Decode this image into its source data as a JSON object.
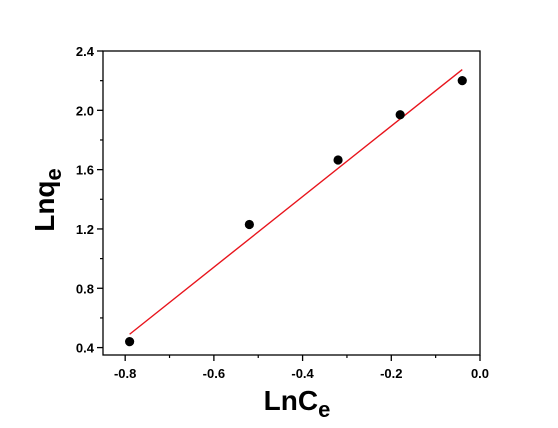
{
  "chart_data": {
    "type": "scatter",
    "title": "",
    "xlabel": {
      "base": "LnC",
      "subscript": "e"
    },
    "ylabel": {
      "base": "Lnq",
      "subscript": "e"
    },
    "xlim": [
      -0.85,
      0.0
    ],
    "ylim": [
      0.35,
      2.4
    ],
    "x_ticks": [
      "-0.8",
      "-0.6",
      "-0.4",
      "-0.2",
      "0.0"
    ],
    "x_tick_values": [
      -0.8,
      -0.6,
      -0.4,
      -0.2,
      0.0
    ],
    "y_ticks": [
      "0.4",
      "0.8",
      "1.2",
      "1.6",
      "2.0",
      "2.4"
    ],
    "y_tick_values": [
      0.4,
      0.8,
      1.2,
      1.6,
      2.0,
      2.4
    ],
    "grid": false,
    "series": [
      {
        "type": "scatter",
        "color": "#000000",
        "points": [
          {
            "x": -0.79,
            "y": 0.44
          },
          {
            "x": -0.52,
            "y": 1.23
          },
          {
            "x": -0.32,
            "y": 1.665
          },
          {
            "x": -0.18,
            "y": 1.97
          },
          {
            "x": -0.04,
            "y": 2.2
          }
        ]
      },
      {
        "type": "line",
        "color": "#e8141c",
        "points": [
          {
            "x": -0.79,
            "y": 0.49
          },
          {
            "x": -0.04,
            "y": 2.275
          }
        ]
      }
    ]
  }
}
